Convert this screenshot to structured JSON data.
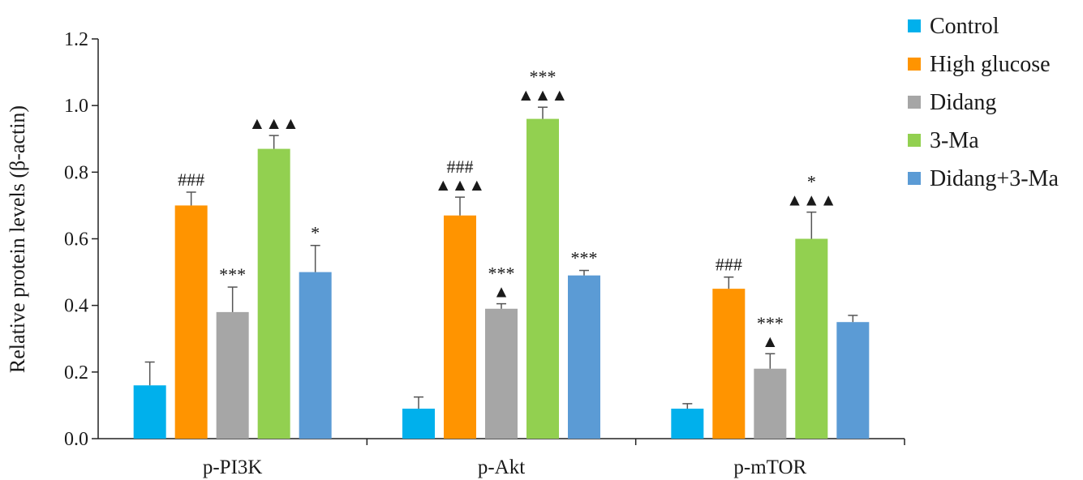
{
  "chart_data": {
    "type": "bar",
    "ylabel": "Relative protein levels (β-actin)",
    "xlabel": "",
    "ylim": [
      0,
      1.2
    ],
    "yticks": [
      "0.0",
      "0.2",
      "0.4",
      "0.6",
      "0.8",
      "1.0",
      "1.2"
    ],
    "categories": [
      "p-PI3K",
      "p-Akt",
      "p-mTOR"
    ],
    "legend_position": "top-right",
    "series": [
      {
        "name": "Control",
        "color": "#00b0ec",
        "values": [
          0.16,
          0.09,
          0.09
        ],
        "errors": [
          0.07,
          0.035,
          0.015
        ]
      },
      {
        "name": "High glucose",
        "color": "#ff9400",
        "values": [
          0.7,
          0.67,
          0.45
        ],
        "errors": [
          0.04,
          0.055,
          0.035
        ]
      },
      {
        "name": "Didang",
        "color": "#a6a6a6",
        "values": [
          0.38,
          0.39,
          0.21
        ],
        "errors": [
          0.075,
          0.015,
          0.045
        ]
      },
      {
        "name": "3-Ma",
        "color": "#92d050",
        "values": [
          0.87,
          0.96,
          0.6
        ],
        "errors": [
          0.04,
          0.035,
          0.08
        ]
      },
      {
        "name": "Didang+3-Ma",
        "color": "#5b9bd5",
        "values": [
          0.5,
          0.49,
          0.35
        ],
        "errors": [
          0.08,
          0.015,
          0.02
        ]
      }
    ],
    "annotations": [
      [
        "",
        "###",
        "***",
        "▲▲▲",
        "*"
      ],
      [
        "",
        "###|▲▲▲",
        "***|▲",
        "***|▲▲▲",
        "***"
      ],
      [
        "",
        "###",
        "***|▲",
        "*|▲▲▲",
        ""
      ]
    ]
  }
}
